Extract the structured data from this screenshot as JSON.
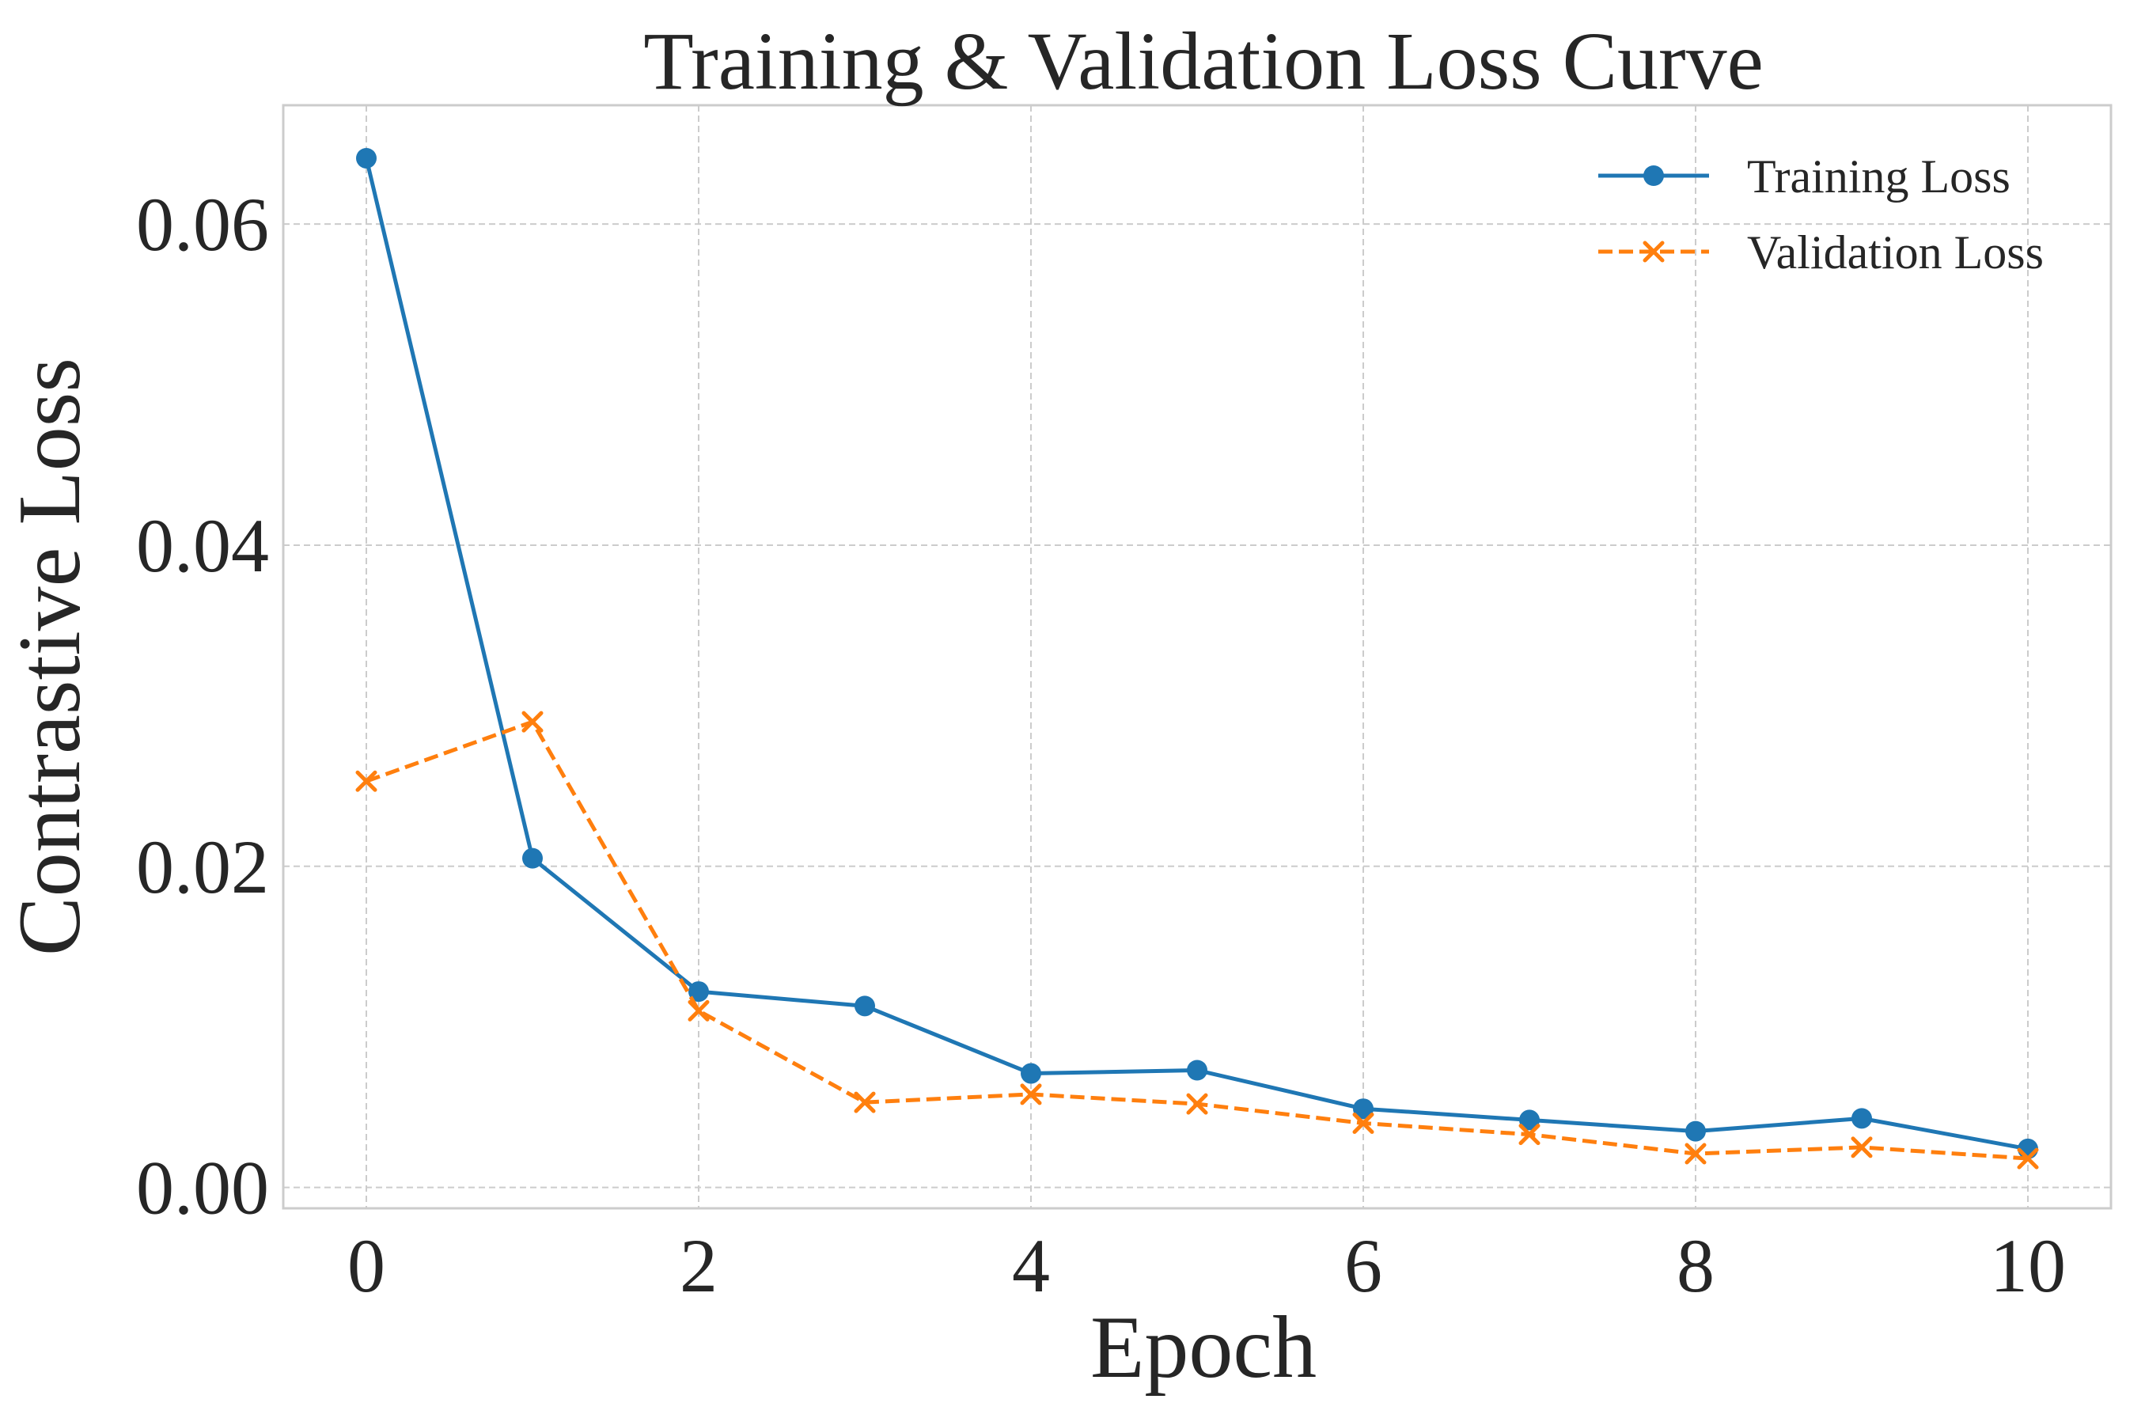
{
  "chart_data": {
    "type": "line",
    "title": "Training & Validation Loss Curve",
    "xlabel": "Epoch",
    "ylabel": "Contrastive Loss",
    "x": [
      0,
      1,
      2,
      3,
      4,
      5,
      6,
      7,
      8,
      9,
      10
    ],
    "xlim": [
      -0.5,
      10.5
    ],
    "ylim": [
      -0.0013,
      0.0674
    ],
    "x_ticks": [
      0,
      2,
      4,
      6,
      8,
      10
    ],
    "x_tick_labels": [
      "0",
      "2",
      "4",
      "6",
      "8",
      "10"
    ],
    "y_ticks": [
      0.0,
      0.02,
      0.04,
      0.06
    ],
    "y_tick_labels": [
      "0.00",
      "0.02",
      "0.04",
      "0.06"
    ],
    "grid": true,
    "legend_position": "top-right",
    "series": [
      {
        "name": "Training Loss",
        "color": "#1f77b4",
        "line_style": "solid",
        "marker": "circle",
        "values": [
          0.0641,
          0.0205,
          0.0122,
          0.0113,
          0.0071,
          0.0073,
          0.0049,
          0.0042,
          0.0035,
          0.0043,
          0.0024
        ]
      },
      {
        "name": "Validation Loss",
        "color": "#ff7f0e",
        "line_style": "dashed",
        "marker": "x",
        "values": [
          0.0253,
          0.029,
          0.011,
          0.0053,
          0.0058,
          0.0052,
          0.004,
          0.0033,
          0.0021,
          0.0025,
          0.0018
        ]
      }
    ]
  }
}
